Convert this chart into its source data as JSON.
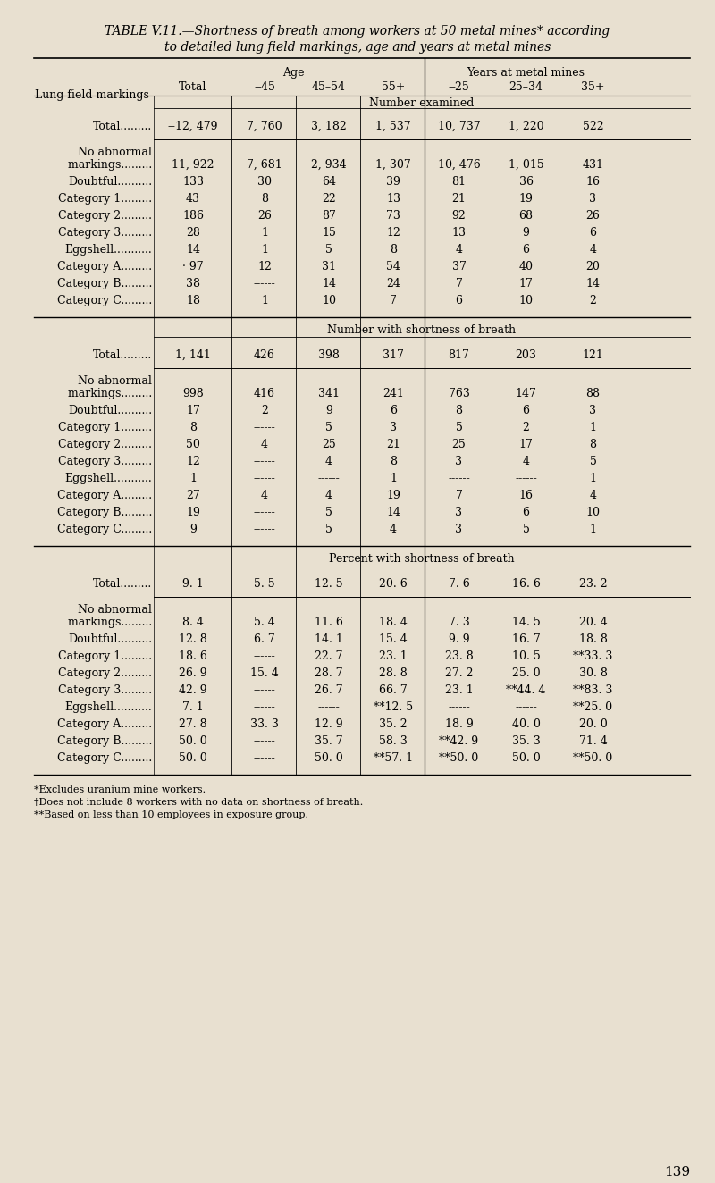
{
  "title_line1": "TABLE V.11.—Shortness of breath among workers at 50 metal mines* according",
  "title_line2": "to detailed lung field markings, age and years at metal mines",
  "bg_color": "#e8e0d0",
  "col_header_age": "Age",
  "col_header_years": "Years at metal mines",
  "sub_headers": [
    "Total",
    "‒45",
    "45–54",
    "55+",
    "‒25",
    "25–34",
    "35+"
  ],
  "section1_label": "Number examined",
  "section2_label": "Number with shortness of breath",
  "section3_label": "Percent with shortness of breath",
  "sec1_data": [
    [
      "‒12, 479",
      "7, 760",
      "3, 182",
      "1, 537",
      "10, 737",
      "1, 220",
      "522"
    ],
    [
      "11, 922",
      "7, 681",
      "2, 934",
      "1, 307",
      "10, 476",
      "1, 015",
      "431"
    ],
    [
      "133",
      "30",
      "64",
      "39",
      "81",
      "36",
      "16"
    ],
    [
      "43",
      "8",
      "22",
      "13",
      "21",
      "19",
      "3"
    ],
    [
      "186",
      "26",
      "87",
      "73",
      "92",
      "68",
      "26"
    ],
    [
      "28",
      "1",
      "15",
      "12",
      "13",
      "9",
      "6"
    ],
    [
      "14",
      "1",
      "5",
      "8",
      "4",
      "6",
      "4"
    ],
    [
      "· 97",
      "12",
      "31",
      "54",
      "37",
      "40",
      "20"
    ],
    [
      "38",
      "------",
      "14",
      "24",
      "7",
      "17",
      "14"
    ],
    [
      "18",
      "1",
      "10",
      "7",
      "6",
      "10",
      "2"
    ]
  ],
  "sec2_data": [
    [
      "1, 141",
      "426",
      "398",
      "317",
      "817",
      "203",
      "121"
    ],
    [
      "998",
      "416",
      "341",
      "241",
      "763",
      "147",
      "88"
    ],
    [
      "17",
      "2",
      "9",
      "6",
      "8",
      "6",
      "3"
    ],
    [
      "8",
      "------",
      "5",
      "3",
      "5",
      "2",
      "1"
    ],
    [
      "50",
      "4",
      "25",
      "21",
      "25",
      "17",
      "8"
    ],
    [
      "12",
      "------",
      "4",
      "8",
      "3",
      "4",
      "5"
    ],
    [
      "1",
      "------",
      "------",
      "1",
      "------",
      "------",
      "1"
    ],
    [
      "27",
      "4",
      "4",
      "19",
      "7",
      "16",
      "4"
    ],
    [
      "19",
      "------",
      "5",
      "14",
      "3",
      "6",
      "10"
    ],
    [
      "9",
      "------",
      "5",
      "4",
      "3",
      "5",
      "1"
    ]
  ],
  "sec3_data": [
    [
      "9. 1",
      "5. 5",
      "12. 5",
      "20. 6",
      "7. 6",
      "16. 6",
      "23. 2"
    ],
    [
      "8. 4",
      "5. 4",
      "11. 6",
      "18. 4",
      "7. 3",
      "14. 5",
      "20. 4"
    ],
    [
      "12. 8",
      "6. 7",
      "14. 1",
      "15. 4",
      "9. 9",
      "16. 7",
      "18. 8"
    ],
    [
      "18. 6",
      "------",
      "22. 7",
      "23. 1",
      "23. 8",
      "10. 5",
      "**33. 3"
    ],
    [
      "26. 9",
      "15. 4",
      "28. 7",
      "28. 8",
      "27. 2",
      "25. 0",
      "30. 8"
    ],
    [
      "42. 9",
      "------",
      "26. 7",
      "66. 7",
      "23. 1",
      "**44. 4",
      "**83. 3"
    ],
    [
      "7. 1",
      "------",
      "------",
      "**12. 5",
      "------",
      "------",
      "**25. 0"
    ],
    [
      "27. 8",
      "33. 3",
      "12. 9",
      "35. 2",
      "18. 9",
      "40. 0",
      "20. 0"
    ],
    [
      "50. 0",
      "------",
      "35. 7",
      "58. 3",
      "**42. 9",
      "35. 3",
      "71. 4"
    ],
    [
      "50. 0",
      "------",
      "50. 0",
      "**57. 1",
      "**50. 0",
      "50. 0",
      "**50. 0"
    ]
  ],
  "footnotes": [
    "*Excludes uranium mine workers.",
    "†Does not include 8 workers with no data on shortness of breath.",
    "**Based on less than 10 employees in exposure group."
  ],
  "page_number": "139"
}
